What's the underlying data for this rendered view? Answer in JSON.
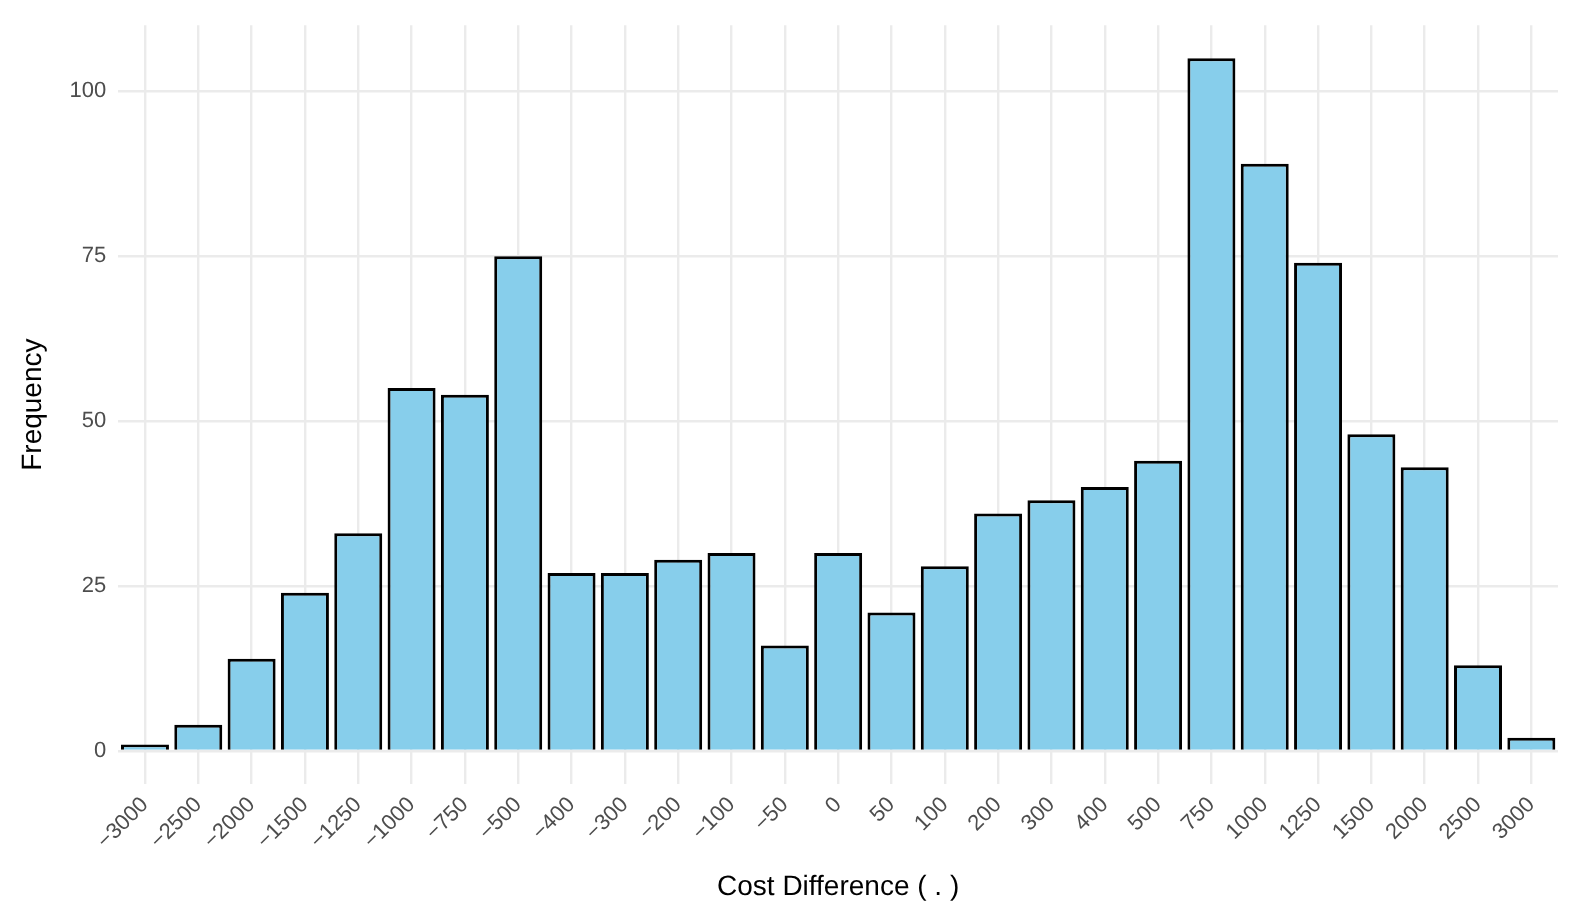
{
  "chart_data": {
    "type": "bar",
    "xlabel": "Cost Difference ( . )",
    "ylabel": "Frequency",
    "categories": [
      "−3000",
      "−2500",
      "−2000",
      "−1500",
      "−1250",
      "−1000",
      "−750",
      "−500",
      "−400",
      "−300",
      "−200",
      "−100",
      "−50",
      "0",
      "50",
      "100",
      "200",
      "300",
      "400",
      "500",
      "750",
      "1000",
      "1250",
      "1500",
      "2000",
      "2500",
      "3000"
    ],
    "values": [
      1,
      4,
      14,
      24,
      33,
      55,
      54,
      75,
      27,
      27,
      29,
      30,
      16,
      30,
      21,
      28,
      36,
      38,
      40,
      44,
      105,
      89,
      74,
      48,
      43,
      13,
      2
    ],
    "color": "#87ceeb",
    "ylim": [
      -5,
      110
    ],
    "yticks": [
      0,
      25,
      50,
      75,
      100
    ],
    "grid": true,
    "legend": false
  }
}
